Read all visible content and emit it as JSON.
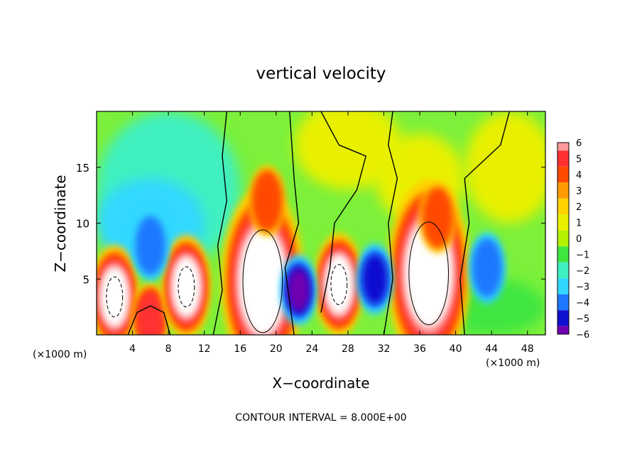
{
  "chart_data": {
    "type": "heatmap",
    "title": "vertical velocity",
    "xlabel": "X−coordinate",
    "ylabel": "Z−coordinate",
    "x_unit_left": "(×1000 m)",
    "x_unit_right": "(×1000 m)",
    "footer": "CONTOUR INTERVAL = 8.000E+00",
    "xlim": [
      0,
      50
    ],
    "ylim": [
      0,
      20
    ],
    "x_ticks": [
      4,
      8,
      12,
      16,
      20,
      24,
      28,
      32,
      36,
      40,
      44,
      48
    ],
    "y_ticks": [
      5,
      10,
      15
    ],
    "colorbar": {
      "levels": [
        6,
        5,
        4,
        3,
        2,
        1,
        0,
        -1,
        -2,
        -3,
        -4,
        -5,
        -6
      ],
      "tick_labels": [
        "6",
        "5",
        "4",
        "3",
        "2",
        "1",
        "0",
        "−1",
        "−2",
        "−3",
        "−4",
        "−5",
        "−6"
      ],
      "colors": [
        "#ff9a9a",
        "#ff3030",
        "#ff4a00",
        "#ff9a00",
        "#ffd200",
        "#e8f000",
        "#b4f000",
        "#40e640",
        "#40f0c0",
        "#30d8ff",
        "#1e78ff",
        "#1010d0",
        "#7000b0"
      ]
    },
    "features": [
      {
        "kind": "updraft",
        "x_center": 2,
        "z_center": 3.4,
        "peak": 8
      },
      {
        "kind": "updraft",
        "x_center": 6,
        "z_center": 1.5,
        "peak": 5
      },
      {
        "kind": "updraft",
        "x_center": 10,
        "z_center": 4.3,
        "peak": 8
      },
      {
        "kind": "updraft",
        "x_center": 18.5,
        "z_center": 4.8,
        "peak": 16
      },
      {
        "kind": "updraft",
        "x_center": 19,
        "z_center": 12,
        "peak": 4
      },
      {
        "kind": "updraft",
        "x_center": 27,
        "z_center": 4.5,
        "peak": 8
      },
      {
        "kind": "updraft",
        "x_center": 37,
        "z_center": 5.5,
        "peak": 16
      },
      {
        "kind": "updraft",
        "x_center": 38,
        "z_center": 10.5,
        "peak": 4
      },
      {
        "kind": "downdraft",
        "x_center": 6,
        "z_center": 8,
        "peak": -4
      },
      {
        "kind": "downdraft",
        "x_center": 22.5,
        "z_center": 4,
        "peak": -6
      },
      {
        "kind": "downdraft",
        "x_center": 31,
        "z_center": 5,
        "peak": -5
      },
      {
        "kind": "downdraft",
        "x_center": 43.5,
        "z_center": 6,
        "peak": -4
      }
    ]
  }
}
